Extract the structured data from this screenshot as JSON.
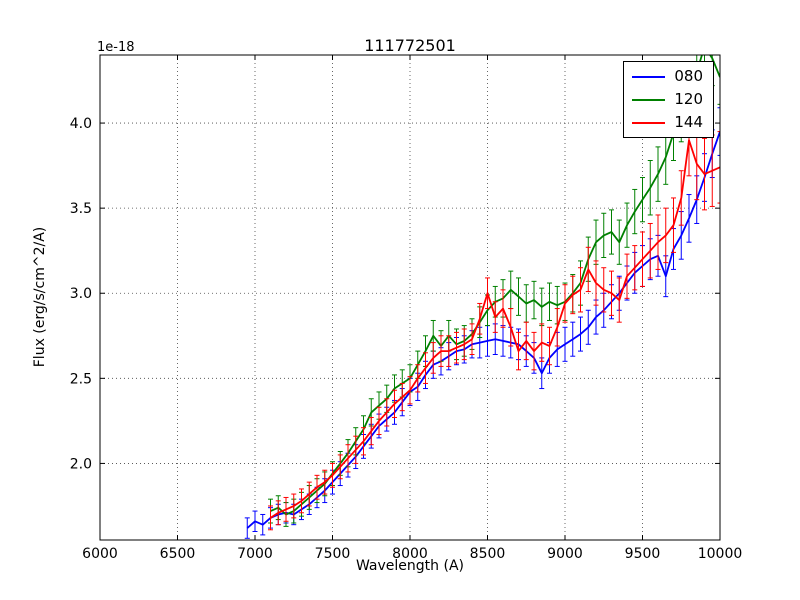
{
  "figure": {
    "background": "#ffffff",
    "frame_color": "#000000",
    "grid_style": "dotted"
  },
  "chart_data": {
    "type": "line",
    "title": "111772501",
    "xlabel": "Wavelength (A)",
    "ylabel": "Flux (erg/s/cm^2/A)",
    "offset_text": "1e-18",
    "xlim": [
      6000,
      10000
    ],
    "ylim": [
      1.55,
      4.4
    ],
    "xticks": [
      6000,
      6500,
      7000,
      7500,
      8000,
      8500,
      9000,
      9500,
      10000
    ],
    "yticks": [
      2.0,
      2.5,
      3.0,
      3.5,
      4.0
    ],
    "grid": true,
    "legend_position": "upper right",
    "error_bars": true,
    "series": [
      {
        "name": "080",
        "color": "#0000ff",
        "x": [
          6950,
          7000,
          7050,
          7100,
          7150,
          7200,
          7250,
          7300,
          7350,
          7400,
          7450,
          7500,
          7550,
          7600,
          7650,
          7700,
          7750,
          7800,
          7850,
          7900,
          7950,
          8000,
          8050,
          8100,
          8150,
          8200,
          8250,
          8300,
          8350,
          8400,
          8450,
          8500,
          8550,
          8600,
          8650,
          8700,
          8750,
          8800,
          8850,
          8900,
          8950,
          9000,
          9050,
          9100,
          9150,
          9200,
          9250,
          9300,
          9350,
          9400,
          9450,
          9500,
          9550,
          9600,
          9650,
          9700,
          9750,
          9800,
          9850,
          9900,
          9950,
          10000
        ],
        "y": [
          1.62,
          1.66,
          1.64,
          1.68,
          1.7,
          1.71,
          1.7,
          1.73,
          1.76,
          1.8,
          1.84,
          1.89,
          1.94,
          1.99,
          2.04,
          2.1,
          2.16,
          2.22,
          2.26,
          2.3,
          2.36,
          2.42,
          2.45,
          2.52,
          2.58,
          2.6,
          2.63,
          2.66,
          2.67,
          2.7,
          2.71,
          2.72,
          2.73,
          2.72,
          2.71,
          2.7,
          2.66,
          2.62,
          2.53,
          2.62,
          2.67,
          2.7,
          2.73,
          2.76,
          2.8,
          2.86,
          2.9,
          2.95,
          3.0,
          3.06,
          3.12,
          3.16,
          3.2,
          3.22,
          3.1,
          3.26,
          3.34,
          3.44,
          3.55,
          3.68,
          3.82,
          3.95
        ],
        "yerr": [
          0.06,
          0.06,
          0.06,
          0.06,
          0.06,
          0.06,
          0.06,
          0.06,
          0.06,
          0.06,
          0.07,
          0.07,
          0.07,
          0.07,
          0.07,
          0.07,
          0.07,
          0.07,
          0.07,
          0.07,
          0.08,
          0.08,
          0.08,
          0.08,
          0.08,
          0.08,
          0.08,
          0.08,
          0.08,
          0.08,
          0.09,
          0.09,
          0.09,
          0.09,
          0.09,
          0.09,
          0.09,
          0.09,
          0.09,
          0.09,
          0.1,
          0.1,
          0.1,
          0.1,
          0.1,
          0.1,
          0.1,
          0.1,
          0.1,
          0.1,
          0.12,
          0.12,
          0.12,
          0.12,
          0.12,
          0.12,
          0.14,
          0.14,
          0.14,
          0.14,
          0.14,
          0.14
        ]
      },
      {
        "name": "120",
        "color": "#008000",
        "x": [
          7100,
          7150,
          7200,
          7250,
          7300,
          7350,
          7400,
          7450,
          7500,
          7550,
          7600,
          7650,
          7700,
          7750,
          7800,
          7850,
          7900,
          7950,
          8000,
          8050,
          8100,
          8150,
          8200,
          8250,
          8300,
          8350,
          8400,
          8450,
          8500,
          8550,
          8600,
          8650,
          8700,
          8750,
          8800,
          8850,
          8900,
          8950,
          9000,
          9050,
          9100,
          9150,
          9200,
          9250,
          9300,
          9350,
          9400,
          9450,
          9500,
          9550,
          9600,
          9650,
          9700,
          9750,
          9800,
          9850,
          9900,
          9950,
          10000
        ],
        "y": [
          1.72,
          1.74,
          1.7,
          1.72,
          1.76,
          1.8,
          1.84,
          1.88,
          1.94,
          2.0,
          2.06,
          2.13,
          2.2,
          2.3,
          2.34,
          2.38,
          2.44,
          2.47,
          2.5,
          2.58,
          2.66,
          2.75,
          2.69,
          2.75,
          2.7,
          2.72,
          2.76,
          2.83,
          2.9,
          2.95,
          2.97,
          3.02,
          2.98,
          2.94,
          2.96,
          2.92,
          2.95,
          2.93,
          2.95,
          3.0,
          3.06,
          3.2,
          3.3,
          3.34,
          3.36,
          3.3,
          3.4,
          3.48,
          3.55,
          3.62,
          3.7,
          3.8,
          3.94,
          4.05,
          4.16,
          4.3,
          4.45,
          4.38,
          4.27
        ],
        "yerr": [
          0.07,
          0.07,
          0.07,
          0.07,
          0.07,
          0.07,
          0.07,
          0.07,
          0.07,
          0.07,
          0.08,
          0.08,
          0.08,
          0.08,
          0.08,
          0.08,
          0.08,
          0.08,
          0.08,
          0.08,
          0.09,
          0.09,
          0.09,
          0.09,
          0.09,
          0.09,
          0.09,
          0.09,
          0.09,
          0.09,
          0.11,
          0.11,
          0.11,
          0.11,
          0.11,
          0.11,
          0.11,
          0.11,
          0.11,
          0.11,
          0.13,
          0.13,
          0.13,
          0.13,
          0.13,
          0.13,
          0.13,
          0.13,
          0.13,
          0.16,
          0.16,
          0.16,
          0.16,
          0.16,
          0.16,
          0.16,
          0.16,
          0.16,
          0.16
        ]
      },
      {
        "name": "144",
        "color": "#ff0000",
        "x": [
          7100,
          7150,
          7200,
          7250,
          7300,
          7350,
          7400,
          7450,
          7500,
          7550,
          7600,
          7650,
          7700,
          7750,
          7800,
          7850,
          7900,
          7950,
          8000,
          8050,
          8100,
          8150,
          8200,
          8250,
          8300,
          8350,
          8400,
          8450,
          8500,
          8550,
          8600,
          8650,
          8700,
          8750,
          8800,
          8850,
          8900,
          8950,
          9000,
          9050,
          9100,
          9150,
          9200,
          9250,
          9300,
          9350,
          9400,
          9450,
          9500,
          9550,
          9600,
          9650,
          9700,
          9750,
          9800,
          9850,
          9900,
          9950,
          10000
        ],
        "y": [
          1.68,
          1.71,
          1.73,
          1.75,
          1.78,
          1.82,
          1.86,
          1.89,
          1.93,
          1.98,
          2.03,
          2.08,
          2.13,
          2.19,
          2.25,
          2.3,
          2.35,
          2.39,
          2.43,
          2.5,
          2.56,
          2.62,
          2.66,
          2.66,
          2.68,
          2.7,
          2.73,
          2.85,
          3.0,
          2.86,
          2.91,
          2.8,
          2.66,
          2.72,
          2.66,
          2.71,
          2.69,
          2.8,
          2.94,
          2.99,
          3.02,
          3.14,
          3.06,
          3.02,
          3.0,
          2.96,
          3.1,
          3.15,
          3.2,
          3.25,
          3.3,
          3.34,
          3.4,
          3.56,
          3.9,
          3.76,
          3.7,
          3.72,
          3.74
        ],
        "yerr": [
          0.07,
          0.07,
          0.07,
          0.07,
          0.07,
          0.07,
          0.07,
          0.07,
          0.07,
          0.07,
          0.08,
          0.08,
          0.08,
          0.08,
          0.08,
          0.08,
          0.08,
          0.08,
          0.08,
          0.08,
          0.09,
          0.09,
          0.09,
          0.09,
          0.09,
          0.09,
          0.09,
          0.09,
          0.09,
          0.09,
          0.11,
          0.11,
          0.11,
          0.11,
          0.11,
          0.11,
          0.11,
          0.11,
          0.11,
          0.11,
          0.13,
          0.13,
          0.13,
          0.13,
          0.13,
          0.13,
          0.13,
          0.13,
          0.16,
          0.16,
          0.16,
          0.16,
          0.16,
          0.16,
          0.21,
          0.21,
          0.21,
          0.21,
          0.21
        ]
      }
    ]
  }
}
